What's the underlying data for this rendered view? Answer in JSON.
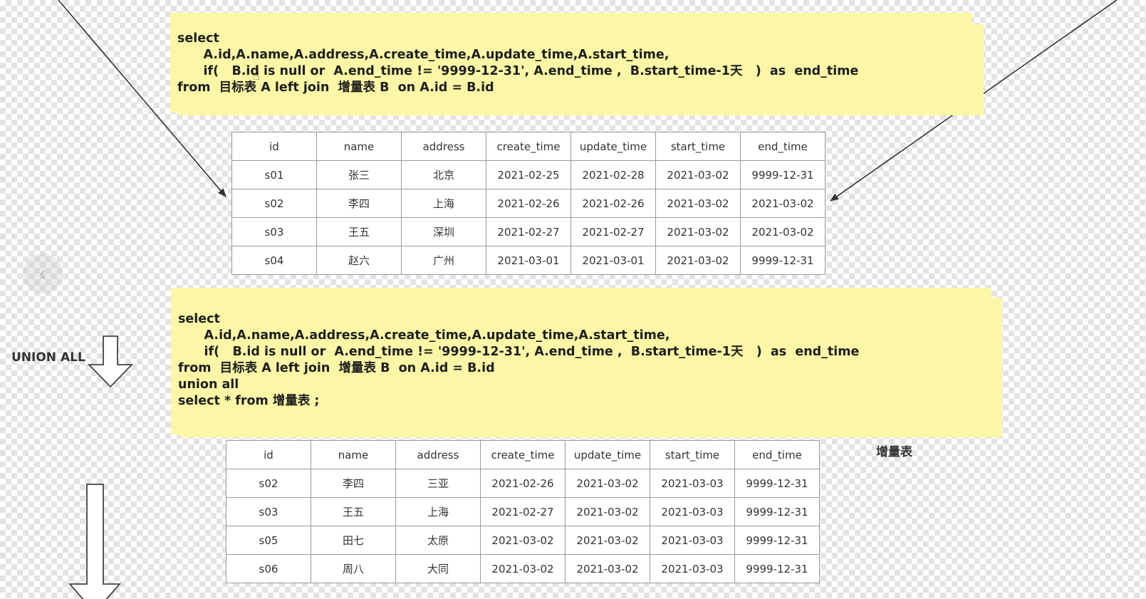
{
  "sql_note_1": {
    "lines": [
      "select",
      "      A.id,A.name,A.address,A.create_time,A.update_time,A.start_time,",
      "      if(   B.id is null or  A.end_time != '9999-12-31', A.end_time ,  B.start_time-1天   )  as  end_time",
      "from  目标表 A left join  增量表 B  on A.id = B.id"
    ]
  },
  "sql_note_2": {
    "lines": [
      "select",
      "      A.id,A.name,A.address,A.create_time,A.update_time,A.start_time,",
      "      if(   B.id is null or  A.end_time != '9999-12-31', A.end_time ,  B.start_time-1天   )  as  end_time",
      "from  目标表 A left join  增量表 B  on A.id = B.id",
      "union all",
      "select * from 增量表 ;"
    ]
  },
  "table_1": {
    "headers": [
      "id",
      "name",
      "address",
      "create_time",
      "update_time",
      "start_time",
      "end_time"
    ],
    "rows": [
      [
        "s01",
        "张三",
        "北京",
        "2021-02-25",
        "2021-02-28",
        "2021-03-02",
        "9999-12-31"
      ],
      [
        "s02",
        "李四",
        "上海",
        "2021-02-26",
        "2021-02-26",
        "2021-03-02",
        "2021-03-02"
      ],
      [
        "s03",
        "王五",
        "深圳",
        "2021-02-27",
        "2021-02-27",
        "2021-03-02",
        "2021-03-02"
      ],
      [
        "s04",
        "赵六",
        "广州",
        "2021-03-01",
        "2021-03-01",
        "2021-03-02",
        "9999-12-31"
      ]
    ]
  },
  "table_2": {
    "headers": [
      "id",
      "name",
      "address",
      "create_time",
      "update_time",
      "start_time",
      "end_time"
    ],
    "rows": [
      [
        "s02",
        "李四",
        "三亚",
        "2021-02-26",
        "2021-03-02",
        "2021-03-03",
        "9999-12-31"
      ],
      [
        "s03",
        "王五",
        "上海",
        "2021-02-27",
        "2021-03-02",
        "2021-03-03",
        "9999-12-31"
      ],
      [
        "s05",
        "田七",
        "太原",
        "2021-03-02",
        "2021-03-02",
        "2021-03-03",
        "9999-12-31"
      ],
      [
        "s06",
        "周八",
        "大同",
        "2021-03-02",
        "2021-03-02",
        "2021-03-03",
        "9999-12-31"
      ]
    ]
  },
  "labels": {
    "union_all": "UNION ALL",
    "incremental_table": "增量表"
  },
  "nav": {
    "prev_icon": "chevron-left-icon"
  }
}
